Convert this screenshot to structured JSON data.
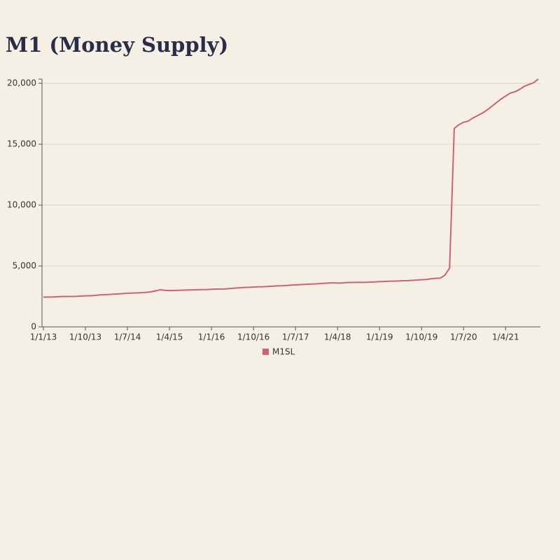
{
  "chart_data": {
    "type": "line",
    "title": "M1 (Money Supply)",
    "categories": [
      "1/1/13",
      null,
      null,
      null,
      null,
      null,
      null,
      null,
      null,
      "1/10/13",
      null,
      null,
      null,
      null,
      null,
      null,
      null,
      null,
      "1/7/14",
      null,
      null,
      null,
      null,
      null,
      null,
      null,
      null,
      "1/4/15",
      null,
      null,
      null,
      null,
      null,
      null,
      null,
      null,
      "1/1/16",
      null,
      null,
      null,
      null,
      null,
      null,
      null,
      null,
      "1/10/16",
      null,
      null,
      null,
      null,
      null,
      null,
      null,
      null,
      "1/7/17",
      null,
      null,
      null,
      null,
      null,
      null,
      null,
      null,
      "1/4/18",
      null,
      null,
      null,
      null,
      null,
      null,
      null,
      null,
      "1/1/19",
      null,
      null,
      null,
      null,
      null,
      null,
      null,
      null,
      "1/10/19",
      null,
      null,
      null,
      null,
      null,
      null,
      null,
      null,
      "1/7/20",
      null,
      null,
      null,
      null,
      null,
      null,
      null,
      null,
      "1/4/21",
      null,
      null,
      null,
      null,
      null,
      null,
      null
    ],
    "series": [
      {
        "name": "M1SL",
        "color": "#c96374",
        "values": [
          2450,
          2450,
          2460,
          2480,
          2490,
          2500,
          2500,
          2510,
          2530,
          2550,
          2560,
          2580,
          2620,
          2640,
          2660,
          2690,
          2710,
          2740,
          2760,
          2780,
          2790,
          2810,
          2840,
          2880,
          2950,
          3050,
          3000,
          2980,
          2990,
          3000,
          3020,
          3030,
          3040,
          3050,
          3060,
          3070,
          3090,
          3100,
          3110,
          3120,
          3150,
          3180,
          3210,
          3240,
          3250,
          3270,
          3290,
          3300,
          3320,
          3340,
          3370,
          3380,
          3400,
          3430,
          3450,
          3470,
          3490,
          3510,
          3530,
          3550,
          3580,
          3600,
          3620,
          3600,
          3610,
          3640,
          3650,
          3660,
          3660,
          3660,
          3680,
          3690,
          3720,
          3730,
          3750,
          3760,
          3770,
          3790,
          3800,
          3820,
          3840,
          3870,
          3890,
          3950,
          3990,
          4000,
          4250,
          4830,
          16300,
          16600,
          16800,
          16900,
          17150,
          17350,
          17550,
          17800,
          18100,
          18400,
          18700,
          18950,
          19200,
          19300,
          19500,
          19750,
          19900,
          20050,
          20350
        ]
      }
    ],
    "ylim": [
      0,
      20000
    ],
    "yticks": [
      0,
      {
        "value": 5000,
        "label": "5,000"
      },
      {
        "value": 10000,
        "label": "10,000"
      },
      {
        "value": 15000,
        "label": "15,000"
      },
      {
        "value": 20000,
        "label": "20,000"
      }
    ],
    "grid": true,
    "legend": "bottom"
  }
}
